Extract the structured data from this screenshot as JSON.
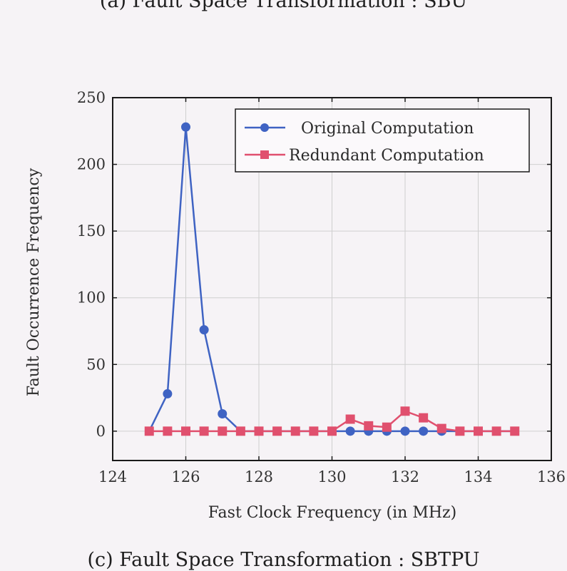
{
  "captions": {
    "top": "(a) Fault Space Transformation : SBU",
    "bottom": "(c) Fault Space Transformation : SBTPU"
  },
  "chart_data": {
    "type": "line",
    "title": "",
    "xlabel": "Fast Clock Frequency (in MHz)",
    "ylabel": "Fault Occurrence Frequency",
    "xlim": [
      124,
      136
    ],
    "ylim": [
      -22,
      250
    ],
    "xticks": [
      124,
      126,
      128,
      130,
      132,
      134,
      136
    ],
    "yticks": [
      0,
      50,
      100,
      150,
      200,
      250
    ],
    "grid": true,
    "legend_position": "top-right",
    "series": [
      {
        "name": "Original Computation",
        "color": "#3f63c3",
        "marker": "circle",
        "x": [
          125,
          125.5,
          126,
          126.5,
          127,
          127.5,
          128,
          128.5,
          129,
          129.5,
          130,
          130.5,
          131,
          131.5,
          132,
          132.5,
          133,
          133.5,
          134,
          134.5,
          135
        ],
        "y": [
          0,
          28,
          228,
          76,
          13,
          0,
          0,
          0,
          0,
          0,
          0,
          0,
          0,
          0,
          0,
          0,
          0,
          0,
          0,
          0,
          0
        ],
        "marked": [
          false,
          true,
          true,
          true,
          true,
          false,
          false,
          false,
          false,
          false,
          false,
          true,
          true,
          true,
          true,
          true,
          true,
          false,
          false,
          false,
          false
        ]
      },
      {
        "name": "Redundant Computation",
        "color": "#e0506e",
        "marker": "square",
        "x": [
          125,
          125.5,
          126,
          126.5,
          127,
          127.5,
          128,
          128.5,
          129,
          129.5,
          130,
          130.5,
          131,
          131.5,
          132,
          132.5,
          133,
          133.5,
          134,
          134.5,
          135
        ],
        "y": [
          0,
          0,
          0,
          0,
          0,
          0,
          0,
          0,
          0,
          0,
          0,
          9,
          4,
          3,
          15,
          10,
          2,
          0,
          0,
          0,
          0
        ]
      }
    ]
  }
}
